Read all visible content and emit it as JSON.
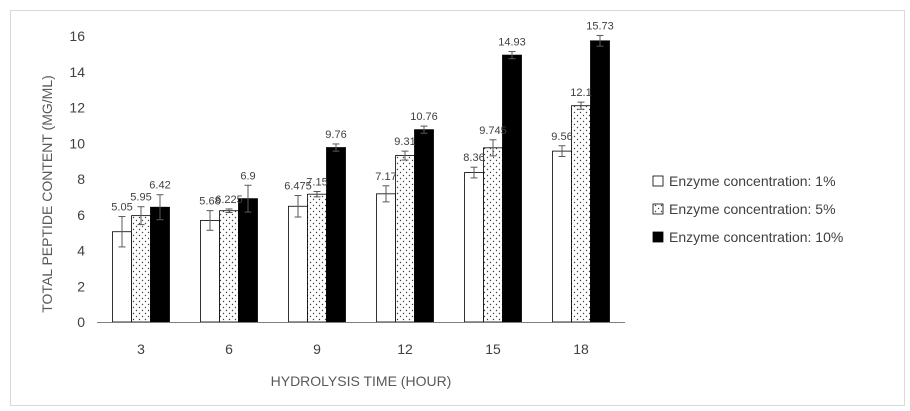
{
  "chart_data": {
    "type": "bar",
    "xlabel": "HYDROLYSIS TIME (HOUR)",
    "ylabel": "TOTAL PEPTIDE CONTENT (MG/ML)",
    "categories": [
      "3",
      "6",
      "9",
      "12",
      "15",
      "18"
    ],
    "ylim": [
      0,
      16
    ],
    "yticks": [
      "0",
      "2",
      "4",
      "6",
      "8",
      "10",
      "12",
      "14",
      "16"
    ],
    "grid": false,
    "legend_position": "right",
    "series": [
      {
        "name": "Enzyme concentration: 1%",
        "pattern": "white",
        "values": [
          5.05,
          5.68,
          6.475,
          7.17,
          8.36,
          9.56
        ],
        "labels": [
          "5.05",
          "5.68",
          "6.475",
          "7.17",
          "8.36",
          "9.56"
        ],
        "errors": [
          0.85,
          0.55,
          0.6,
          0.45,
          0.3,
          0.3
        ]
      },
      {
        "name": "Enzyme concentration: 5%",
        "pattern": "dotted",
        "values": [
          5.95,
          6.225,
          7.15,
          9.31,
          9.745,
          12.1
        ],
        "labels": [
          "5.95",
          "6.225",
          "7.15",
          "9.31",
          "9.745",
          "12.1"
        ],
        "errors": [
          0.5,
          0.1,
          0.15,
          0.25,
          0.45,
          0.2
        ]
      },
      {
        "name": "Enzyme concentration: 10%",
        "pattern": "black",
        "values": [
          6.42,
          6.9,
          9.76,
          10.76,
          14.93,
          15.73
        ],
        "labels": [
          "6.42",
          "6.9",
          "9.76",
          "10.76",
          "14.93",
          "15.73"
        ],
        "errors": [
          0.7,
          0.75,
          0.2,
          0.2,
          0.2,
          0.3
        ]
      }
    ]
  }
}
